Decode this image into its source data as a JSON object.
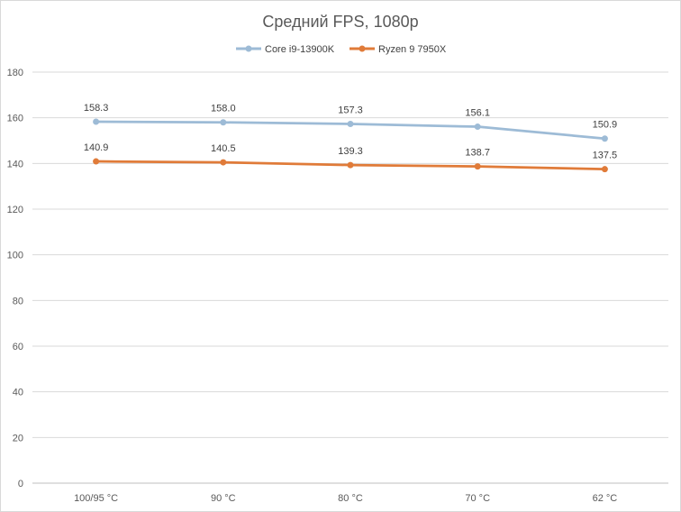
{
  "chart_data": {
    "type": "line",
    "title": "Средний FPS, 1080p",
    "categories": [
      "100/95 °C",
      "90 °C",
      "80 °C",
      "70 °C",
      "62 °C"
    ],
    "series": [
      {
        "name": "Core i9-13900K",
        "color": "#9dbbd6",
        "values": [
          158.3,
          158.0,
          157.3,
          156.1,
          150.9
        ],
        "labels": [
          "158.3",
          "158.0",
          "157.3",
          "156.1",
          "150.9"
        ]
      },
      {
        "name": "Ryzen 9 7950X",
        "color": "#e07b39",
        "values": [
          140.9,
          140.5,
          139.3,
          138.7,
          137.5
        ],
        "labels": [
          "140.9",
          "140.5",
          "139.3",
          "138.7",
          "137.5"
        ]
      }
    ],
    "ylim": [
      0,
      180
    ],
    "yticks": [
      0,
      20,
      40,
      60,
      80,
      100,
      120,
      140,
      160,
      180
    ],
    "grid": true,
    "legend": "top-center",
    "xlabel": "",
    "ylabel": ""
  }
}
